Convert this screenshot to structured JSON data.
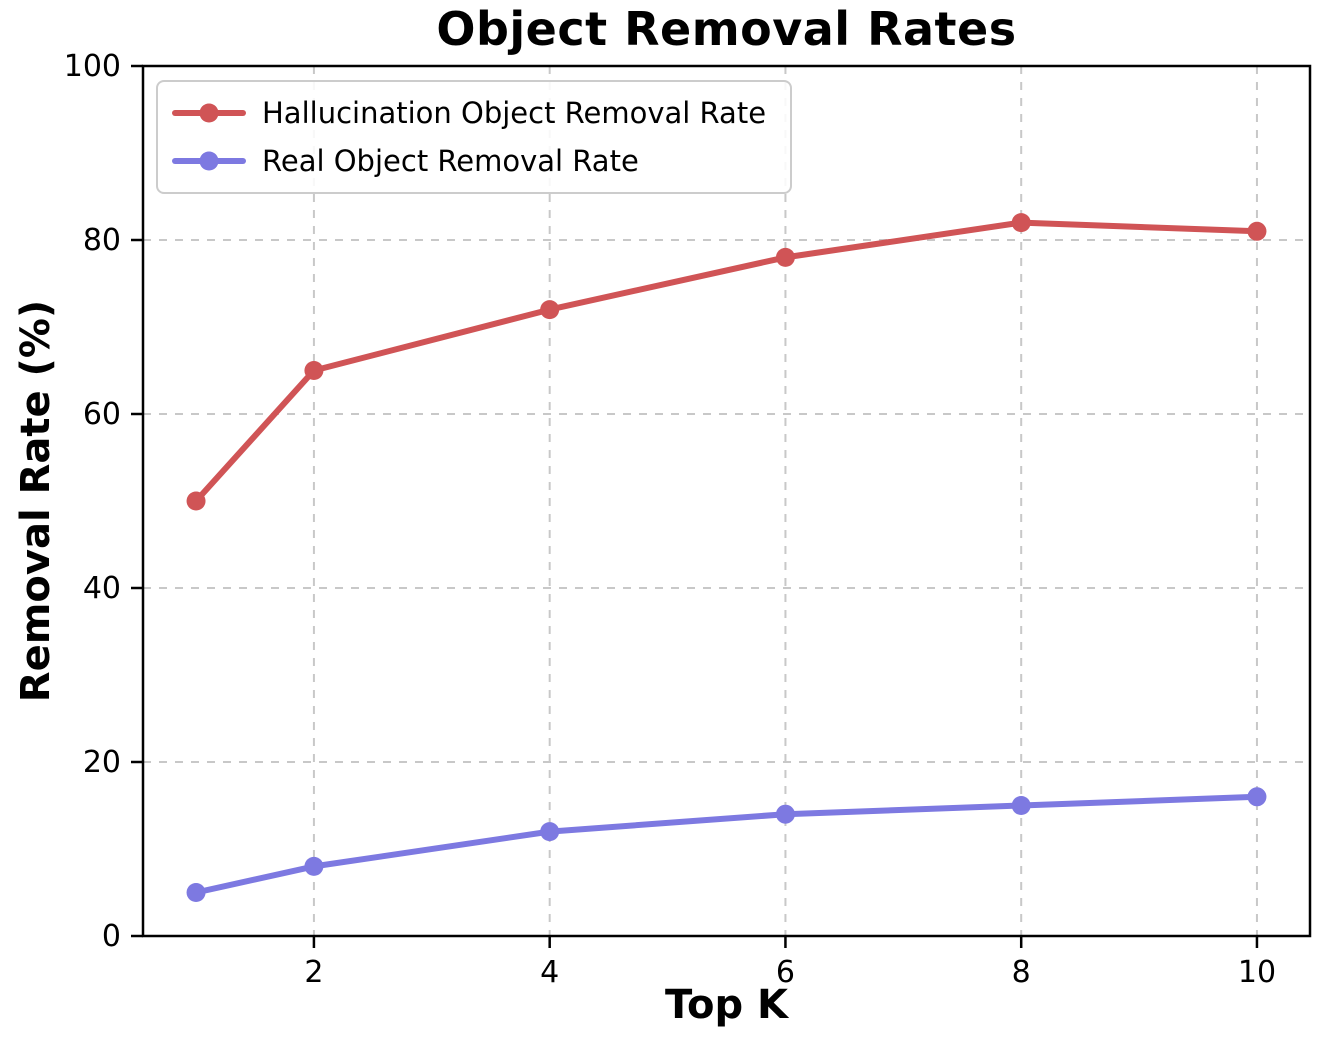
{
  "figure": {
    "background": "#ffffff"
  },
  "chart_data": {
    "type": "line",
    "title": "Object Removal Rates",
    "xlabel": "Top K",
    "ylabel": "Removal Rate (%)",
    "x": [
      1,
      2,
      4,
      6,
      8,
      10
    ],
    "series": [
      {
        "name": "Hallucination Object Removal Rate",
        "color": "#d05456",
        "values": [
          50,
          65,
          72,
          78,
          82,
          81
        ]
      },
      {
        "name": "Real Object Removal Rate",
        "color": "#7d79e1",
        "values": [
          5,
          8,
          12,
          14,
          15,
          16
        ]
      }
    ],
    "xlim": [
      0.55,
      10.45
    ],
    "ylim": [
      0,
      100
    ],
    "xticks": [
      2,
      4,
      6,
      8,
      10
    ],
    "yticks": [
      0,
      20,
      40,
      60,
      80,
      100
    ],
    "grid": true,
    "grid_style": "dashed",
    "legend_position": "upper left",
    "grid_color": "#c8c8c8",
    "axis_color": "#000000",
    "text_color": "#000000"
  }
}
